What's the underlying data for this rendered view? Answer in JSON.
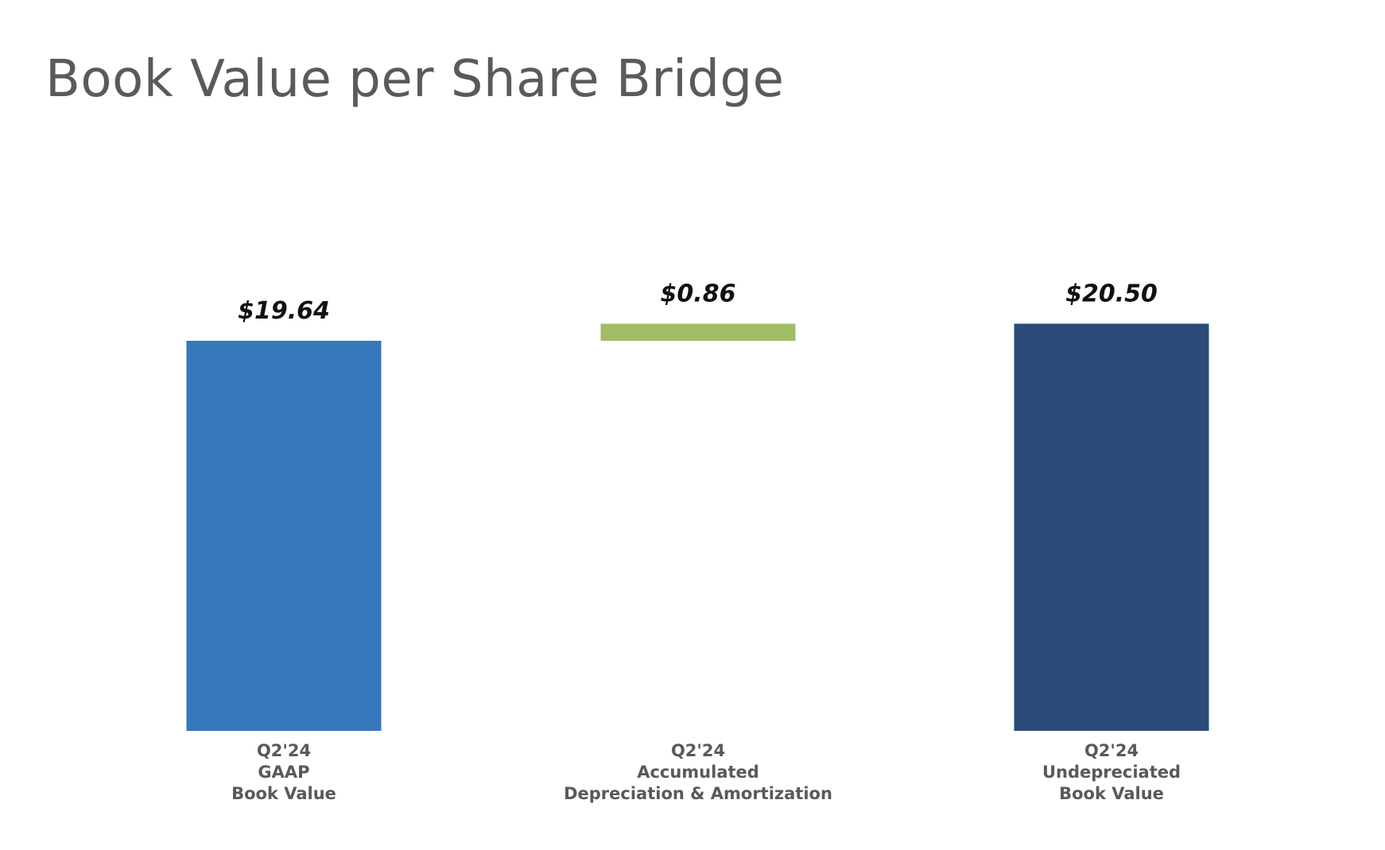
{
  "title": "Book Value per Share Bridge",
  "chart_data": {
    "type": "bar",
    "subtype": "waterfall",
    "title": "Book Value per Share Bridge",
    "xlabel": "",
    "ylabel": "",
    "grid": false,
    "legend": "none",
    "categories": [
      [
        "Q2'24",
        "GAAP",
        "Book Value"
      ],
      [
        "Q2'24",
        "Accumulated",
        "Depreciation & Amortization"
      ],
      [
        "Q2'24",
        "Undepreciated",
        "Book Value"
      ]
    ],
    "values": [
      19.64,
      0.86,
      20.5
    ],
    "bar_types": [
      "total",
      "increase",
      "total"
    ],
    "data_labels": [
      "$19.64",
      "$0.86",
      "$20.50"
    ],
    "colors": [
      "#3577BB",
      "#A0BC66",
      "#2B4A79"
    ]
  }
}
